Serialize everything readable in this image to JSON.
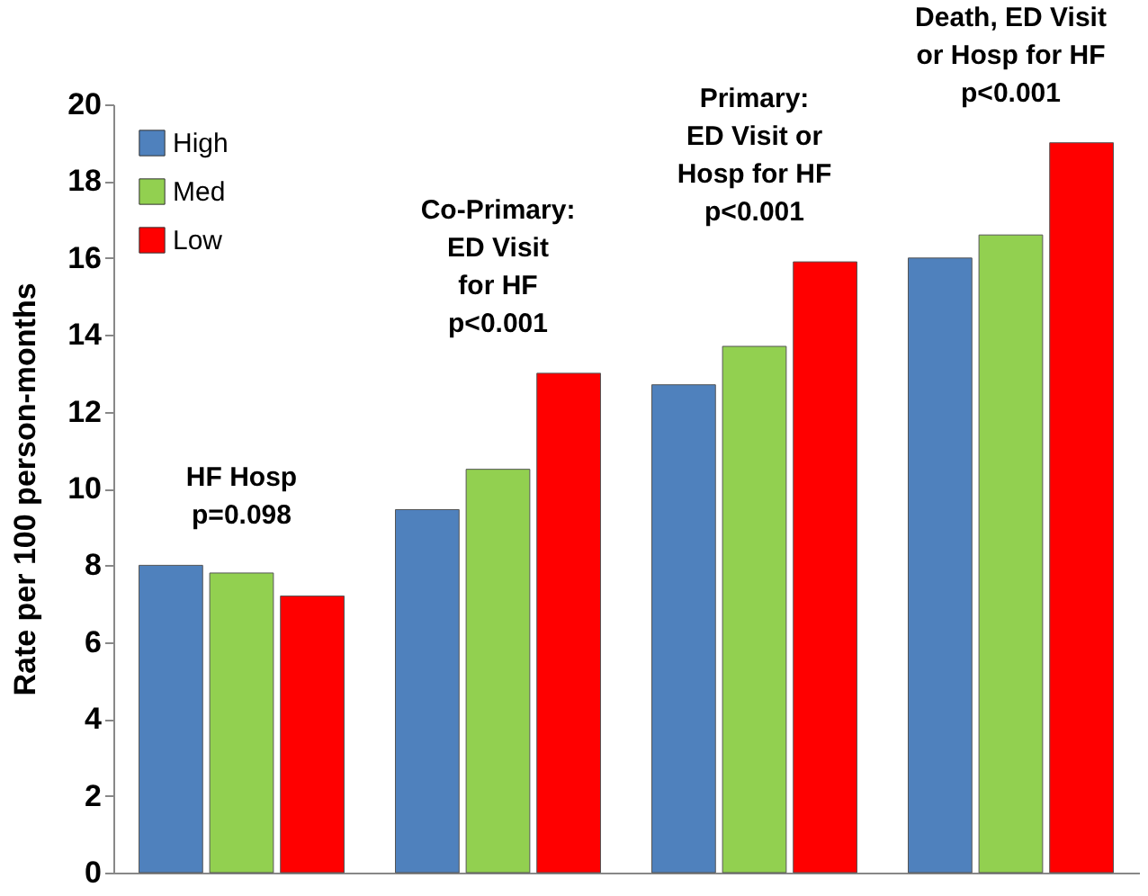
{
  "chart_data": {
    "type": "bar",
    "ylabel": "Rate per 100 person-months",
    "categories": [
      null,
      null,
      null,
      null
    ],
    "series": [
      {
        "name": "High",
        "color": "#4f81bd",
        "values": [
          8.0,
          9.45,
          12.7,
          16.0
        ]
      },
      {
        "name": "Med",
        "color": "#92d050",
        "values": [
          7.8,
          10.5,
          13.7,
          16.6
        ]
      },
      {
        "name": "Low",
        "color": "#ff0000",
        "values": [
          7.2,
          13.0,
          15.9,
          19.0
        ]
      }
    ],
    "ylim": [
      0,
      20
    ],
    "yticks": [
      0,
      2,
      4,
      6,
      8,
      10,
      12,
      14,
      16,
      18,
      20
    ],
    "grid": false,
    "legend": "top left",
    "annotations": [
      "HF Hosp\np=0.098",
      "Co-Primary:\nED Visit\nfor HF\np<0.001",
      "Primary:\nED Visit or\nHosp for HF\np<0.001",
      "Death, ED Visit\nor Hosp for HF\np<0.001"
    ]
  }
}
